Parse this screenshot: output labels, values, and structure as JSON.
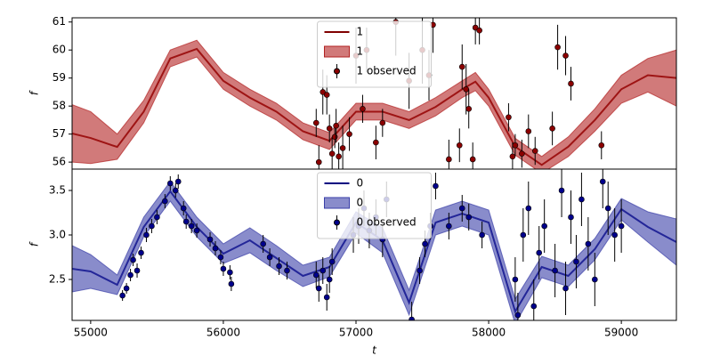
{
  "chart_data": [
    {
      "type": "line",
      "ylabel": "f",
      "legend": "upper center",
      "xlim": [
        54860,
        59415
      ],
      "ylim": [
        55.75,
        61.15
      ],
      "yticks": [
        56,
        57,
        58,
        59,
        60,
        61
      ],
      "x": [
        54860,
        55000,
        55200,
        55400,
        55600,
        55800,
        56000,
        56200,
        56400,
        56600,
        56800,
        57000,
        57200,
        57400,
        57600,
        57800,
        57900,
        58000,
        58200,
        58400,
        58600,
        58800,
        59000,
        59200,
        59415
      ],
      "series": [
        {
          "name": "1",
          "color": "#800000",
          "values": [
            57.02,
            56.86,
            56.54,
            57.8,
            59.7,
            60.04,
            58.9,
            58.3,
            57.8,
            57.1,
            56.76,
            57.8,
            57.8,
            57.5,
            57.97,
            58.6,
            58.87,
            58.3,
            56.55,
            55.9,
            56.55,
            57.5,
            58.6,
            59.1,
            59.0
          ]
        },
        {
          "name": "1",
          "color": "#b22222",
          "lower": [
            56.0,
            55.95,
            56.1,
            57.4,
            59.4,
            59.75,
            58.6,
            58.0,
            57.5,
            56.8,
            56.45,
            57.5,
            57.5,
            57.2,
            57.65,
            58.3,
            58.55,
            58.0,
            56.25,
            55.6,
            56.2,
            57.1,
            58.1,
            58.5,
            58.0
          ],
          "upper": [
            58.05,
            57.8,
            57.0,
            58.2,
            60.0,
            60.35,
            59.2,
            58.6,
            58.1,
            57.4,
            57.05,
            58.1,
            58.1,
            57.8,
            58.3,
            58.9,
            59.2,
            58.6,
            56.85,
            56.2,
            56.9,
            57.9,
            59.1,
            59.7,
            60.0
          ]
        },
        {
          "name": "1 observed",
          "color": "#8b0000",
          "x": [
            56700,
            56720,
            56750,
            56780,
            56800,
            56820,
            56840,
            56850,
            56870,
            56900,
            56950,
            57000,
            57050,
            57080,
            57150,
            57200,
            57300,
            57400,
            57500,
            57550,
            57580,
            57700,
            57780,
            57800,
            57830,
            57850,
            57880,
            57900,
            57930,
            58150,
            58180,
            58200,
            58250,
            58300,
            58350,
            58480,
            58520,
            58580,
            58620,
            58850
          ],
          "values": [
            57.4,
            56.0,
            58.5,
            58.4,
            57.2,
            56.3,
            56.9,
            57.3,
            56.2,
            56.5,
            57.0,
            59.8,
            57.9,
            60.0,
            56.7,
            57.4,
            61.0,
            58.9,
            60.0,
            59.1,
            60.9,
            56.1,
            56.6,
            59.4,
            58.6,
            57.9,
            56.1,
            60.8,
            60.7,
            57.6,
            56.2,
            56.6,
            56.3,
            57.1,
            56.4,
            57.2,
            60.1,
            59.8,
            58.8,
            56.6
          ],
          "errors": [
            0.5,
            0.6,
            0.8,
            0.7,
            0.5,
            0.6,
            0.4,
            0.6,
            0.5,
            0.8,
            0.6,
            1.0,
            0.5,
            0.8,
            0.6,
            0.5,
            1.2,
            1.0,
            1.2,
            0.9,
            1.0,
            0.7,
            0.6,
            0.8,
            0.9,
            0.7,
            0.6,
            0.6,
            0.5,
            0.5,
            0.5,
            0.4,
            0.5,
            0.6,
            0.5,
            0.6,
            0.8,
            0.7,
            0.6,
            0.5
          ]
        }
      ]
    },
    {
      "type": "line",
      "xlabel": "t",
      "ylabel": "f",
      "legend": "upper center",
      "xlim": [
        54860,
        59415
      ],
      "ylim": [
        2.04,
        3.74
      ],
      "yticks": [
        {
          "value": 2.5,
          "label": "2.5"
        },
        {
          "value": 3,
          "label": "3.0"
        },
        {
          "value": 3.5,
          "label": "3.5"
        }
      ],
      "xticks": [
        55000,
        56000,
        57000,
        58000,
        59000
      ],
      "x": [
        54860,
        55000,
        55200,
        55400,
        55600,
        55800,
        56000,
        56200,
        56400,
        56600,
        56800,
        57000,
        57200,
        57400,
        57600,
        57800,
        58000,
        58200,
        58400,
        58600,
        58800,
        59000,
        59200,
        59415
      ],
      "series": [
        {
          "name": "0",
          "color": "#000080",
          "values": [
            2.62,
            2.59,
            2.44,
            3.09,
            3.49,
            3.09,
            2.79,
            2.94,
            2.74,
            2.54,
            2.64,
            3.14,
            2.94,
            2.24,
            3.14,
            3.24,
            3.14,
            2.14,
            2.64,
            2.54,
            2.84,
            3.29,
            3.09,
            2.92
          ]
        },
        {
          "name": "0",
          "color": "#3a3fa8",
          "lower": [
            2.36,
            2.4,
            2.33,
            2.98,
            3.38,
            2.98,
            2.68,
            2.8,
            2.6,
            2.42,
            2.53,
            3.02,
            2.8,
            2.1,
            3.0,
            3.1,
            3.0,
            2.0,
            2.52,
            2.42,
            2.72,
            3.17,
            2.92,
            2.66
          ],
          "upper": [
            2.88,
            2.78,
            2.55,
            3.2,
            3.6,
            3.2,
            2.9,
            3.08,
            2.88,
            2.66,
            2.75,
            3.26,
            3.08,
            2.38,
            3.28,
            3.38,
            3.28,
            2.28,
            2.76,
            2.66,
            2.96,
            3.41,
            3.26,
            3.18
          ]
        },
        {
          "name": "0 observed",
          "color": "#00008b",
          "x": [
            55240,
            55270,
            55300,
            55320,
            55350,
            55380,
            55420,
            55460,
            55500,
            55560,
            55600,
            55640,
            55660,
            55700,
            55720,
            55760,
            55800,
            55900,
            55940,
            55980,
            56000,
            56050,
            56060,
            56300,
            56350,
            56420,
            56480,
            56700,
            56720,
            56750,
            56780,
            56800,
            56820,
            56980,
            57020,
            57060,
            57100,
            57150,
            57200,
            57230,
            57420,
            57480,
            57520,
            57560,
            57600,
            57700,
            57800,
            57850,
            57950,
            58200,
            58220,
            58260,
            58300,
            58340,
            58380,
            58420,
            58500,
            58550,
            58580,
            58620,
            58660,
            58700,
            58750,
            58800,
            58860,
            58900,
            58950,
            59000
          ],
          "values": [
            2.32,
            2.4,
            2.55,
            2.72,
            2.6,
            2.8,
            3.0,
            3.1,
            3.2,
            3.38,
            3.58,
            3.5,
            3.6,
            3.3,
            3.15,
            3.1,
            3.05,
            2.95,
            2.85,
            2.75,
            2.62,
            2.58,
            2.45,
            2.9,
            2.75,
            2.65,
            2.6,
            2.55,
            2.4,
            2.6,
            2.3,
            2.5,
            2.7,
            3.0,
            3.1,
            3.3,
            3.05,
            3.2,
            2.95,
            3.4,
            2.05,
            2.6,
            2.9,
            3.1,
            3.55,
            3.1,
            3.3,
            3.2,
            3.0,
            2.5,
            2.1,
            3.0,
            3.3,
            2.2,
            2.8,
            3.1,
            2.6,
            3.5,
            2.4,
            3.2,
            2.7,
            3.4,
            2.9,
            2.5,
            3.6,
            3.3,
            3.0,
            3.1
          ],
          "errors": [
            0.06,
            0.06,
            0.07,
            0.07,
            0.08,
            0.07,
            0.08,
            0.08,
            0.08,
            0.08,
            0.08,
            0.08,
            0.08,
            0.08,
            0.08,
            0.08,
            0.08,
            0.08,
            0.08,
            0.08,
            0.08,
            0.08,
            0.08,
            0.1,
            0.1,
            0.1,
            0.1,
            0.15,
            0.15,
            0.15,
            0.15,
            0.15,
            0.15,
            0.2,
            0.2,
            0.2,
            0.2,
            0.2,
            0.2,
            0.2,
            0.2,
            0.15,
            0.15,
            0.15,
            0.15,
            0.15,
            0.15,
            0.15,
            0.15,
            0.25,
            0.25,
            0.3,
            0.3,
            0.3,
            0.3,
            0.3,
            0.3,
            0.3,
            0.3,
            0.3,
            0.3,
            0.3,
            0.3,
            0.3,
            0.3,
            0.3,
            0.3,
            0.3
          ]
        }
      ]
    }
  ]
}
